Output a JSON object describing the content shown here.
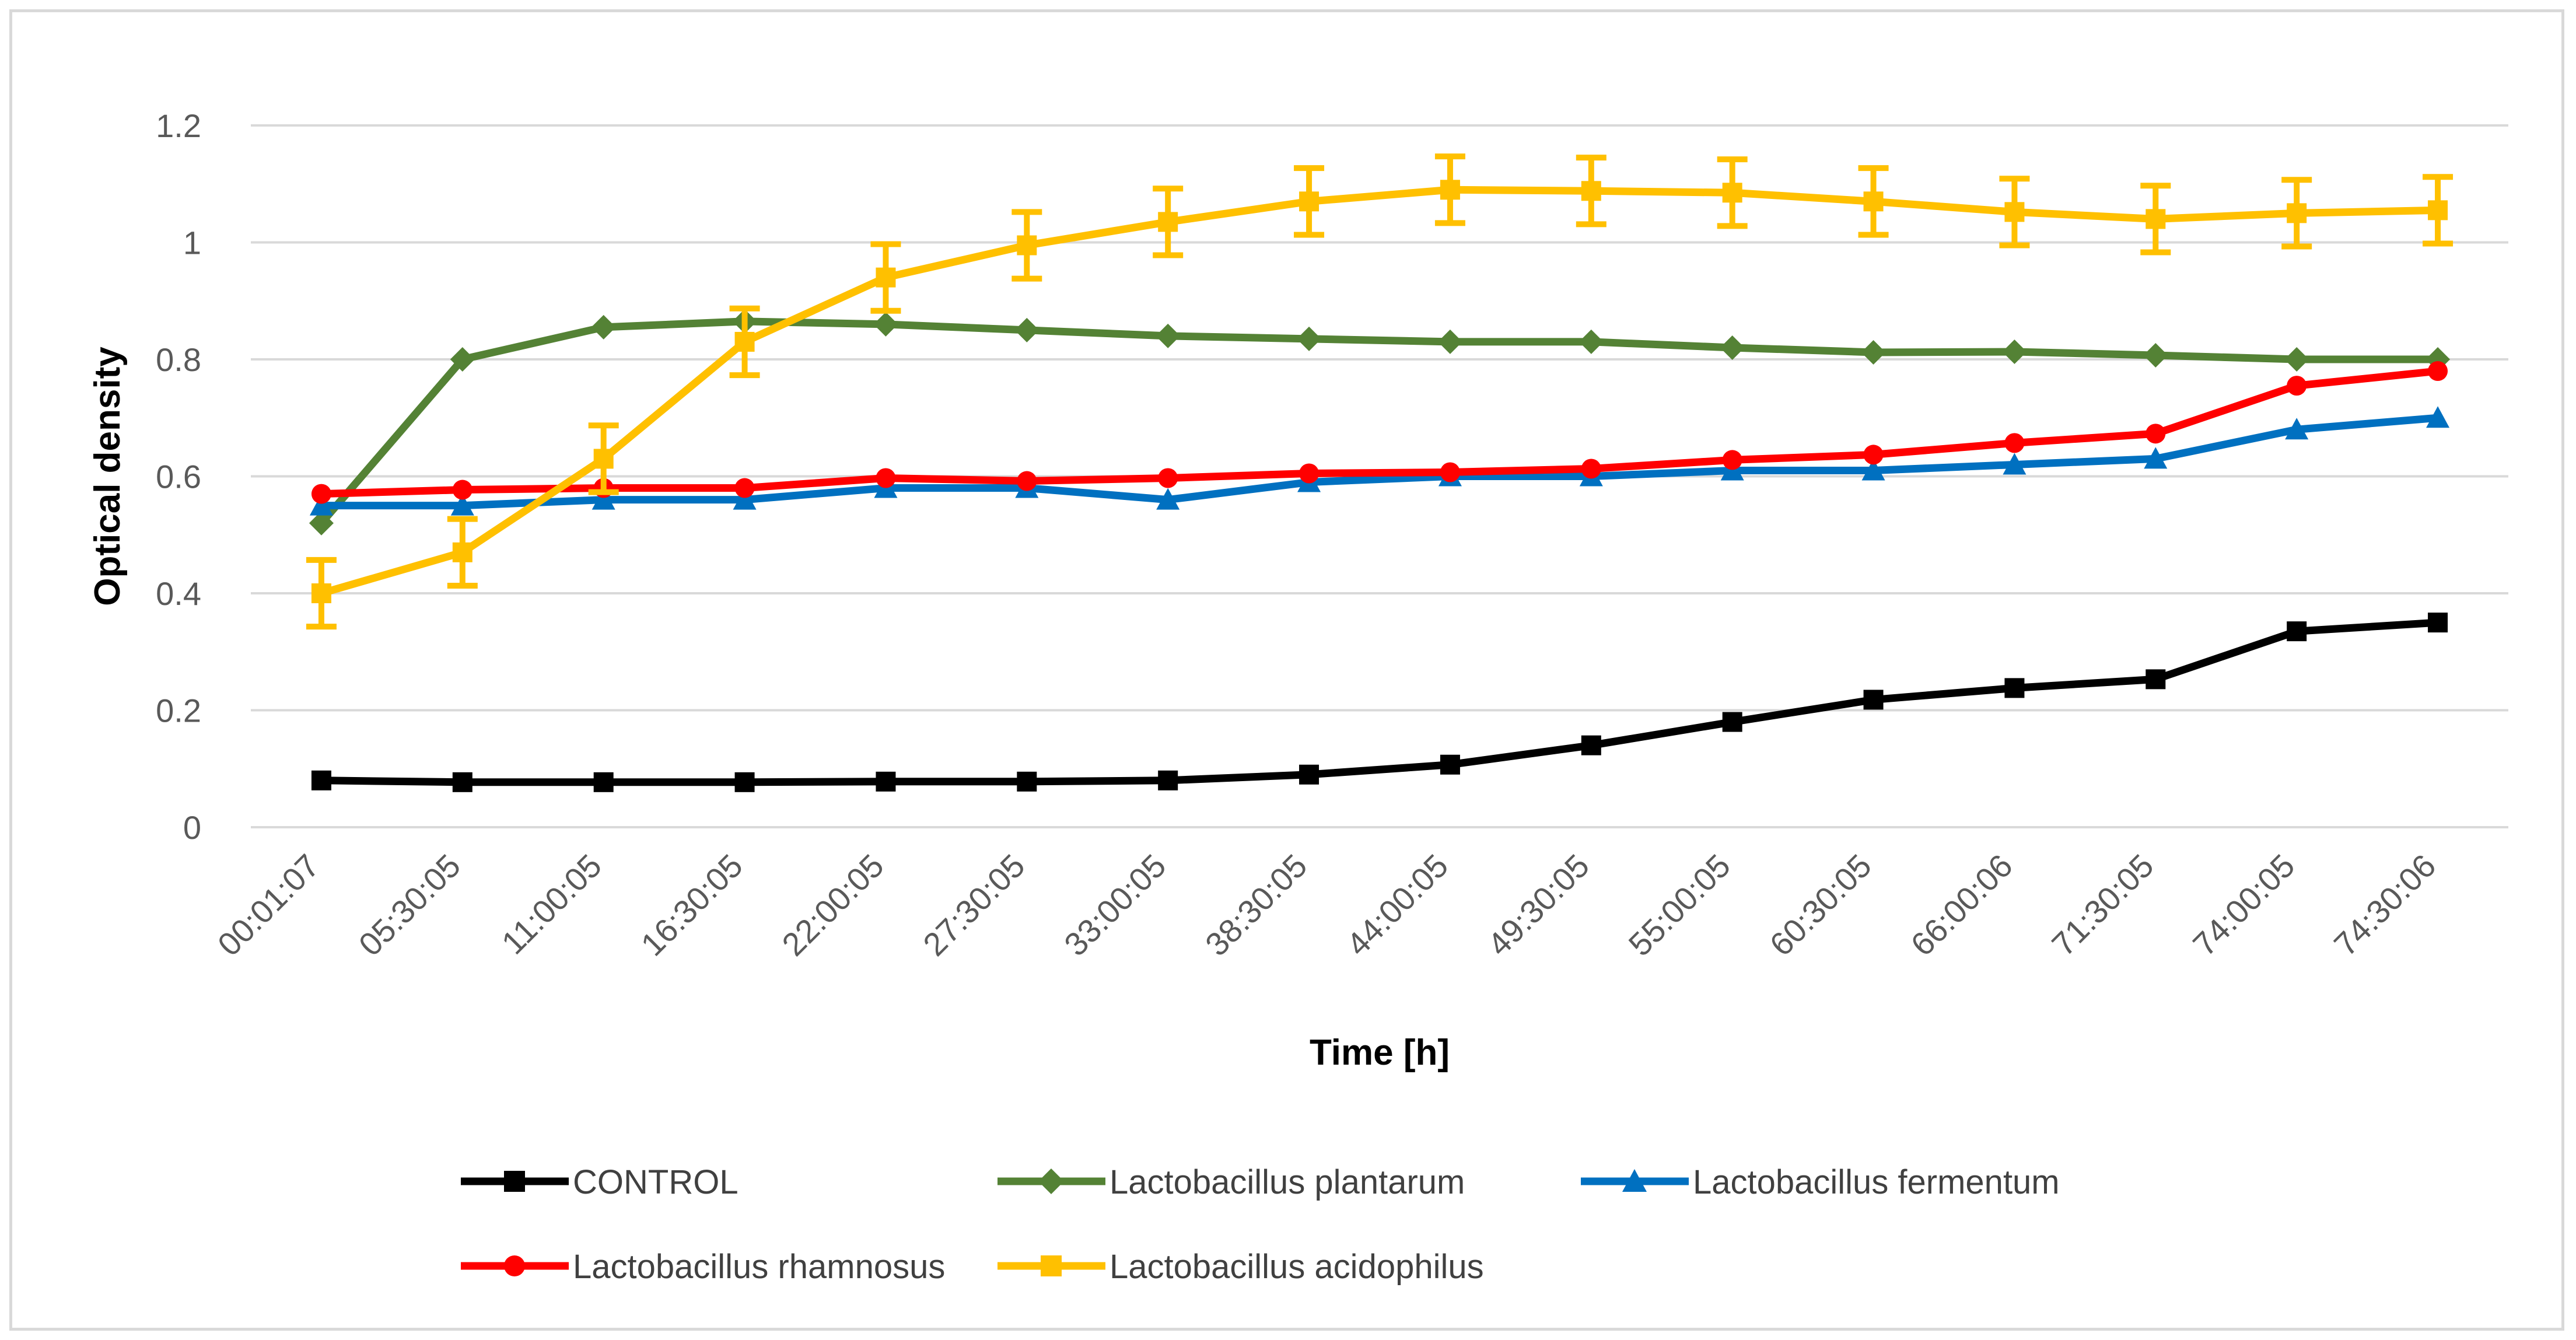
{
  "chart_data": {
    "type": "line",
    "title": "",
    "xlabel": "Time [h]",
    "ylabel": "Optical density",
    "ylim": [
      0,
      1.2
    ],
    "yticks": [
      0,
      0.2,
      0.4,
      0.6,
      0.8,
      1,
      1.2
    ],
    "ytick_labels": [
      "0",
      "0.2",
      "0.4",
      "0.6",
      "0.8",
      "1",
      "1.2"
    ],
    "categories": [
      "00:01:07",
      "05:30:05",
      "11:00:05",
      "16:30:05",
      "22:00:05",
      "27:30:05",
      "33:00:05",
      "38:30:05",
      "44:00:05",
      "49:30:05",
      "55:00:05",
      "60:30:05",
      "66:00:06",
      "71:30:05",
      "74:00:05",
      "74:30:06"
    ],
    "grid": true,
    "legend_position": "bottom",
    "series": [
      {
        "name": "CONTROL",
        "color": "#000000",
        "marker": "square",
        "values": [
          0.08,
          0.077,
          0.077,
          0.077,
          0.078,
          0.078,
          0.08,
          0.09,
          0.107,
          0.14,
          0.18,
          0.218,
          0.238,
          0.253,
          0.335,
          0.35
        ]
      },
      {
        "name": "Lactobacillus plantarum",
        "color": "#548235",
        "marker": "diamond",
        "values": [
          0.52,
          0.8,
          0.855,
          0.865,
          0.86,
          0.85,
          0.84,
          0.835,
          0.83,
          0.83,
          0.82,
          0.812,
          0.813,
          0.807,
          0.8,
          0.8
        ]
      },
      {
        "name": "Lactobacillus fermentum",
        "color": "#0070C0",
        "marker": "triangle",
        "values": [
          0.55,
          0.55,
          0.56,
          0.56,
          0.58,
          0.58,
          0.56,
          0.59,
          0.6,
          0.6,
          0.61,
          0.61,
          0.62,
          0.63,
          0.68,
          0.7
        ]
      },
      {
        "name": "Lactobacillus rhamnosus",
        "color": "#FF0000",
        "marker": "circle",
        "values": [
          0.57,
          0.577,
          0.58,
          0.58,
          0.597,
          0.592,
          0.597,
          0.605,
          0.607,
          0.613,
          0.628,
          0.637,
          0.657,
          0.673,
          0.755,
          0.78
        ]
      },
      {
        "name": "Lactobacillus acidophilus",
        "color": "#FFC000",
        "marker": "square",
        "values": [
          0.4,
          0.47,
          0.63,
          0.83,
          0.94,
          0.995,
          1.035,
          1.07,
          1.09,
          1.088,
          1.085,
          1.07,
          1.052,
          1.04,
          1.05,
          1.055
        ],
        "error": [
          0.057,
          0.057,
          0.057,
          0.057,
          0.057,
          0.057,
          0.057,
          0.057,
          0.057,
          0.057,
          0.057,
          0.057,
          0.057,
          0.057,
          0.057,
          0.057
        ]
      }
    ]
  }
}
